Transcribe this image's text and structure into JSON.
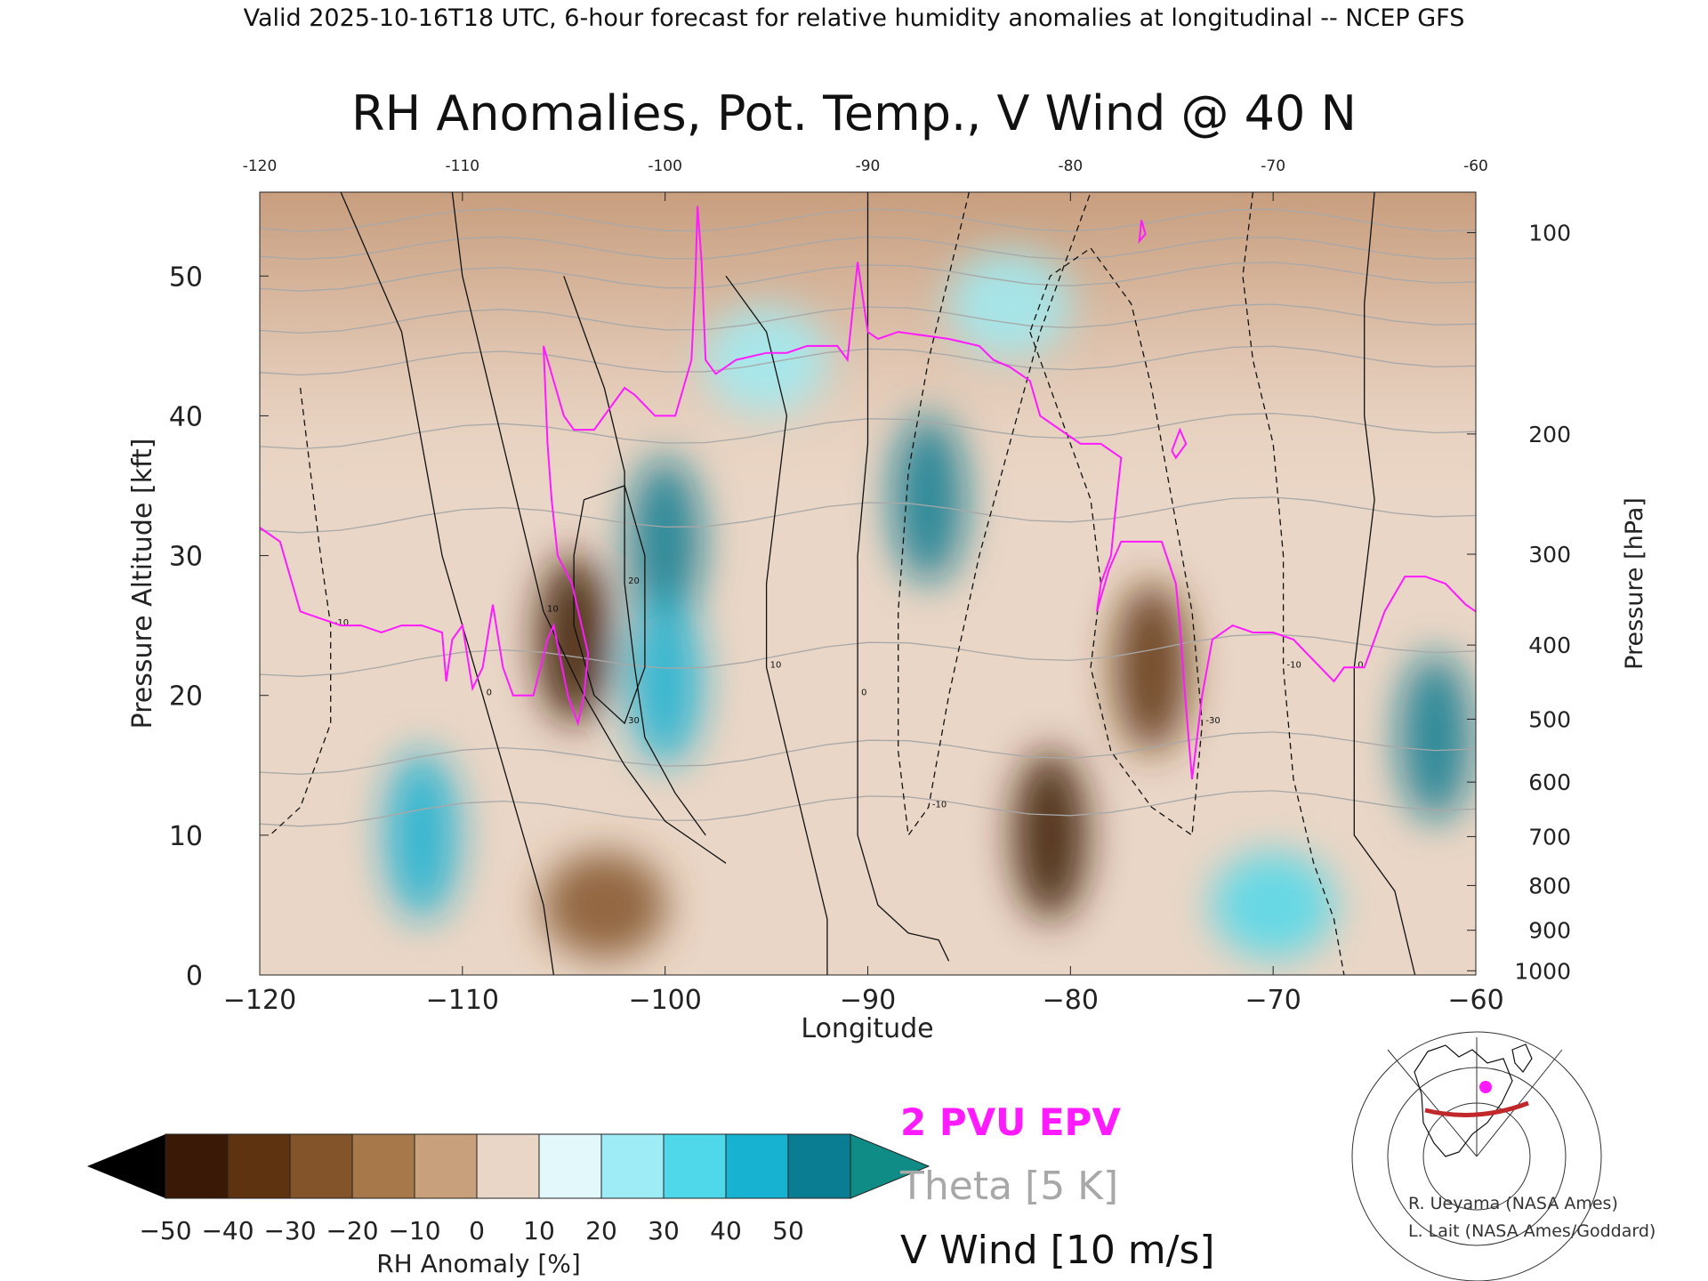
{
  "header": "Valid 2025-10-16T18 UTC, 6-hour forecast for relative humidity anomalies at longitudinal -- NCEP GFS",
  "chart_data": {
    "type": "heatmap",
    "title": "RH Anomalies, Pot. Temp., V Wind @ 40 N",
    "xlabel": "Longitude",
    "ylabel_left": "Pressure Altitude [kft]",
    "ylabel_right": "Pressure [hPa]",
    "xlim": [
      -120,
      -60
    ],
    "ylim": [
      0,
      56
    ],
    "x_ticks": [
      -120,
      -110,
      -100,
      -90,
      -80,
      -70,
      -60
    ],
    "x_tick_labels": [
      "−120",
      "−110",
      "−100",
      "−90",
      "−80",
      "−70",
      "−60"
    ],
    "top_tick_labels": [
      "-120",
      "-110",
      "-100",
      "-90",
      "-80",
      "-70",
      "-60"
    ],
    "y_ticks": [
      0,
      10,
      20,
      30,
      40,
      50
    ],
    "y_tick_labels": [
      "0",
      "10",
      "20",
      "30",
      "40",
      "50"
    ],
    "pressure_ticks": [
      {
        "hpa": 100,
        "kft": 53.1,
        "label": "100"
      },
      {
        "hpa": 200,
        "kft": 38.7,
        "label": "200"
      },
      {
        "hpa": 300,
        "kft": 30.1,
        "label": "300"
      },
      {
        "hpa": 400,
        "kft": 23.6,
        "label": "400"
      },
      {
        "hpa": 500,
        "kft": 18.3,
        "label": "500"
      },
      {
        "hpa": 600,
        "kft": 13.8,
        "label": "600"
      },
      {
        "hpa": 700,
        "kft": 9.9,
        "label": "700"
      },
      {
        "hpa": 800,
        "kft": 6.4,
        "label": "800"
      },
      {
        "hpa": 900,
        "kft": 3.2,
        "label": "900"
      },
      {
        "hpa": 1000,
        "kft": 0.3,
        "label": "1000"
      }
    ],
    "rh_anomaly_blobs": [
      {
        "lon": -100,
        "kft": 31,
        "anom": 50
      },
      {
        "lon": -100,
        "kft": 21,
        "anom": 40
      },
      {
        "lon": -87,
        "kft": 34,
        "anom": 45
      },
      {
        "lon": -62,
        "kft": 17,
        "anom": 50
      },
      {
        "lon": -112,
        "kft": 10,
        "anom": 40
      },
      {
        "lon": -104.5,
        "kft": 24,
        "anom": -50
      },
      {
        "lon": -81,
        "kft": 10,
        "anom": -50
      },
      {
        "lon": -76,
        "kft": 22,
        "anom": -40
      },
      {
        "lon": -103,
        "kft": 5,
        "anom": -30
      },
      {
        "lon": -95,
        "kft": 44,
        "anom": 20
      },
      {
        "lon": -83,
        "kft": 48,
        "anom": 15
      },
      {
        "lon": -70,
        "kft": 5,
        "anom": 25
      }
    ],
    "pv2_line": {
      "name": "2 PVU EPV",
      "color": "#ff1aff",
      "points": [
        [
          -120,
          32
        ],
        [
          -119,
          31
        ],
        [
          -118,
          26
        ],
        [
          -117,
          25.5
        ],
        [
          -116,
          25
        ],
        [
          -115,
          25
        ],
        [
          -114,
          24.5
        ],
        [
          -113,
          25
        ],
        [
          -112,
          25
        ],
        [
          -111,
          24.5
        ],
        [
          -110.8,
          21
        ],
        [
          -110.5,
          24
        ],
        [
          -110,
          25
        ],
        [
          -109.5,
          20.5
        ],
        [
          -109,
          22
        ],
        [
          -108.5,
          26.5
        ],
        [
          -108,
          22
        ],
        [
          -107.5,
          20
        ],
        [
          -106.5,
          20
        ],
        [
          -105.8,
          24
        ],
        [
          -105.5,
          25
        ],
        [
          -104.8,
          20
        ],
        [
          -104.3,
          18
        ],
        [
          -104,
          20
        ],
        [
          -103.8,
          23
        ],
        [
          -104.6,
          28
        ],
        [
          -105.3,
          30
        ],
        [
          -105.6,
          34
        ],
        [
          -105.8,
          38
        ],
        [
          -106,
          45
        ],
        [
          -105,
          40
        ],
        [
          -104.5,
          39
        ],
        [
          -103.5,
          39
        ],
        [
          -103,
          40
        ],
        [
          -102,
          42
        ],
        [
          -101.5,
          41.5
        ],
        [
          -100.5,
          40
        ],
        [
          -99.5,
          40
        ],
        [
          -99,
          42.5
        ],
        [
          -98.7,
          44
        ],
        [
          -98.5,
          50
        ],
        [
          -98.4,
          55
        ],
        [
          -98.2,
          51
        ],
        [
          -98,
          44
        ],
        [
          -97.5,
          43
        ],
        [
          -96.5,
          44
        ],
        [
          -95,
          44.5
        ],
        [
          -94,
          44.5
        ],
        [
          -93,
          45
        ],
        [
          -91.5,
          45
        ],
        [
          -91,
          44
        ],
        [
          -90.5,
          51
        ],
        [
          -90,
          46
        ],
        [
          -89.5,
          45.5
        ],
        [
          -88.5,
          46
        ],
        [
          -86,
          45.5
        ],
        [
          -84.5,
          45
        ],
        [
          -83.8,
          44
        ],
        [
          -83,
          43.5
        ],
        [
          -82,
          42.5
        ],
        [
          -81.5,
          40
        ],
        [
          -81,
          39.5
        ],
        [
          -80,
          38.5
        ],
        [
          -79.5,
          38
        ],
        [
          -78.5,
          38
        ],
        [
          -77.5,
          37
        ],
        [
          -77.8,
          33
        ],
        [
          -78,
          30
        ],
        [
          -78.5,
          28
        ],
        [
          -78.7,
          26
        ],
        [
          -78.1,
          29
        ],
        [
          -77.5,
          31
        ],
        [
          -76.5,
          31
        ],
        [
          -75.5,
          31
        ],
        [
          -74.8,
          28
        ],
        [
          -74.6,
          25
        ],
        [
          -74.4,
          21
        ],
        [
          -74,
          14
        ],
        [
          -73.5,
          20
        ],
        [
          -73,
          24
        ],
        [
          -72,
          25
        ],
        [
          -71,
          24.5
        ],
        [
          -70,
          24.5
        ],
        [
          -69,
          24
        ],
        [
          -68,
          22.5
        ],
        [
          -67,
          21
        ],
        [
          -66.5,
          22
        ],
        [
          -65.5,
          22
        ],
        [
          -65,
          24
        ],
        [
          -64.5,
          26
        ],
        [
          -63.5,
          28.5
        ],
        [
          -62.5,
          28.5
        ],
        [
          -61.5,
          28
        ],
        [
          -60.5,
          26.5
        ],
        [
          -60,
          26
        ]
      ],
      "stratospheric_blips": [
        [
          [
            -76.5,
            54
          ],
          [
            -76.3,
            53
          ],
          [
            -76.6,
            52.5
          ],
          [
            -76.5,
            54
          ]
        ],
        [
          [
            -75,
            37.5
          ],
          [
            -74.6,
            39
          ],
          [
            -74.3,
            38
          ],
          [
            -74.8,
            37
          ],
          [
            -75,
            37.5
          ]
        ]
      ]
    },
    "theta_levels": [
      {
        "k": 310,
        "base": 12,
        "slope": 0.02
      },
      {
        "k": 320,
        "base": 16,
        "slope": 0.03
      },
      {
        "k": 330,
        "base": 23,
        "slope": 0.03
      },
      {
        "k": 340,
        "base": 33,
        "slope": 0.02
      },
      {
        "k": 350,
        "base": 39,
        "slope": 0.02
      },
      {
        "k": 360,
        "base": 44,
        "slope": 0.01
      },
      {
        "k": 370,
        "base": 47,
        "slope": 0.01
      },
      {
        "k": 380,
        "base": 50,
        "slope": 0.01
      },
      {
        "k": 390,
        "base": 52,
        "slope": 0
      },
      {
        "k": 400,
        "base": 54,
        "slope": 0
      }
    ],
    "v_wind_contours": [
      {
        "label": "0",
        "dashed": false,
        "points": [
          [
            -116,
            56
          ],
          [
            -113,
            46
          ],
          [
            -112,
            38
          ],
          [
            -111,
            30
          ],
          [
            -110,
            25
          ],
          [
            -109,
            20
          ],
          [
            -108,
            15
          ],
          [
            -107,
            10
          ],
          [
            -106,
            5
          ],
          [
            -105.5,
            0
          ]
        ]
      },
      {
        "label": "10",
        "dashed": false,
        "points": [
          [
            -110.5,
            56
          ],
          [
            -110,
            50
          ],
          [
            -109,
            44
          ],
          [
            -108,
            38
          ],
          [
            -107,
            32
          ],
          [
            -106,
            26
          ],
          [
            -104,
            20
          ],
          [
            -102,
            15
          ],
          [
            -100,
            11
          ],
          [
            -98,
            9
          ],
          [
            -97,
            8
          ]
        ]
      },
      {
        "label": "20",
        "dashed": false,
        "points": [
          [
            -105,
            50
          ],
          [
            -104,
            46
          ],
          [
            -103,
            42
          ],
          [
            -102,
            36
          ],
          [
            -102,
            28
          ],
          [
            -101.5,
            22
          ],
          [
            -101,
            17
          ],
          [
            -99.5,
            13
          ],
          [
            -98,
            10
          ]
        ]
      },
      {
        "label": "30",
        "dashed": false,
        "points": [
          [
            -104,
            34
          ],
          [
            -104.5,
            30
          ],
          [
            -104.5,
            25
          ],
          [
            -103.5,
            20
          ],
          [
            -102,
            18
          ],
          [
            -101,
            22
          ],
          [
            -101,
            30
          ],
          [
            -102,
            35
          ],
          [
            -104,
            34
          ]
        ]
      },
      {
        "label": "10",
        "dashed": false,
        "points": [
          [
            -97,
            50
          ],
          [
            -95,
            46
          ],
          [
            -94,
            40
          ],
          [
            -94.5,
            34
          ],
          [
            -95,
            28
          ],
          [
            -95,
            22
          ],
          [
            -94,
            16
          ],
          [
            -93,
            10
          ],
          [
            -92,
            4
          ],
          [
            -92,
            0
          ]
        ]
      },
      {
        "label": "0",
        "dashed": false,
        "points": [
          [
            -90,
            56
          ],
          [
            -90,
            50
          ],
          [
            -90,
            44
          ],
          [
            -90,
            38
          ],
          [
            -90.5,
            30
          ],
          [
            -90.5,
            20
          ],
          [
            -90.5,
            10
          ],
          [
            -89.5,
            5
          ],
          [
            -88,
            3
          ],
          [
            -86.5,
            2.5
          ],
          [
            -86,
            1
          ]
        ]
      },
      {
        "label": "-10",
        "dashed": true,
        "points": [
          [
            -85,
            56
          ],
          [
            -86,
            50
          ],
          [
            -87,
            44
          ],
          [
            -88,
            36
          ],
          [
            -88.5,
            26
          ],
          [
            -88.5,
            16
          ],
          [
            -88,
            10
          ],
          [
            -87,
            12
          ],
          [
            -86,
            20
          ],
          [
            -84.5,
            30
          ],
          [
            -83,
            38
          ],
          [
            -81.5,
            46
          ],
          [
            -80,
            52
          ],
          [
            -79,
            56
          ]
        ]
      },
      {
        "label": "-30",
        "dashed": true,
        "points": [
          [
            -82,
            46
          ],
          [
            -80.5,
            40
          ],
          [
            -79,
            34
          ],
          [
            -78.5,
            28
          ],
          [
            -79,
            22
          ],
          [
            -78,
            16
          ],
          [
            -76,
            12
          ],
          [
            -74,
            10
          ],
          [
            -73.5,
            18
          ],
          [
            -74,
            26
          ],
          [
            -75,
            34
          ],
          [
            -76,
            42
          ],
          [
            -77,
            48
          ],
          [
            -79,
            52
          ],
          [
            -81,
            50
          ],
          [
            -82,
            46
          ]
        ]
      },
      {
        "label": "-10",
        "dashed": true,
        "points": [
          [
            -71,
            56
          ],
          [
            -71.5,
            50
          ],
          [
            -71,
            44
          ],
          [
            -70,
            38
          ],
          [
            -69.5,
            30
          ],
          [
            -69.5,
            22
          ],
          [
            -69,
            14
          ],
          [
            -68,
            8
          ],
          [
            -67,
            4
          ],
          [
            -66.5,
            0
          ]
        ]
      },
      {
        "label": "0",
        "dashed": false,
        "points": [
          [
            -65,
            56
          ],
          [
            -65.5,
            48
          ],
          [
            -65.5,
            40
          ],
          [
            -65,
            34
          ],
          [
            -65.5,
            28
          ],
          [
            -66,
            22
          ],
          [
            -66,
            16
          ],
          [
            -66,
            10
          ],
          [
            -65,
            8
          ],
          [
            -64,
            6
          ],
          [
            -63,
            0
          ]
        ]
      },
      {
        "label": "-10",
        "dashed": true,
        "points": [
          [
            -118,
            42
          ],
          [
            -117.5,
            36
          ],
          [
            -117,
            30
          ],
          [
            -116.5,
            25
          ],
          [
            -116.5,
            18
          ],
          [
            -118,
            12
          ],
          [
            -119.5,
            10
          ]
        ]
      }
    ],
    "colorbar": {
      "label": "RH Anomaly [%]",
      "ticks": [
        "−50",
        "−40",
        "−30",
        "−20",
        "−10",
        "0",
        "10",
        "20",
        "30",
        "40",
        "50"
      ],
      "colors": [
        "#3a1a06",
        "#5e3310",
        "#83542a",
        "#a6784a",
        "#c9a07c",
        "#ead6c6",
        "#e2f8fb",
        "#9eecf5",
        "#4fd8ea",
        "#17b2d2",
        "#0b7d92"
      ],
      "under_color": "#000000",
      "over_color": "#0f8c86"
    },
    "legend": [
      {
        "label": "2 PVU EPV",
        "color": "#ff1aff"
      },
      {
        "label": "Theta [5 K]",
        "color": "#a8a8a8"
      },
      {
        "label": "V Wind [10 m/s]",
        "color": "#111111"
      }
    ]
  },
  "credits": [
    "R. Ueyama (NASA Ames)",
    "L. Lait (NASA Ames/Goddard)"
  ],
  "locator_map": {
    "marker_color": "#ff1aff",
    "track_color": "#c0282c"
  }
}
